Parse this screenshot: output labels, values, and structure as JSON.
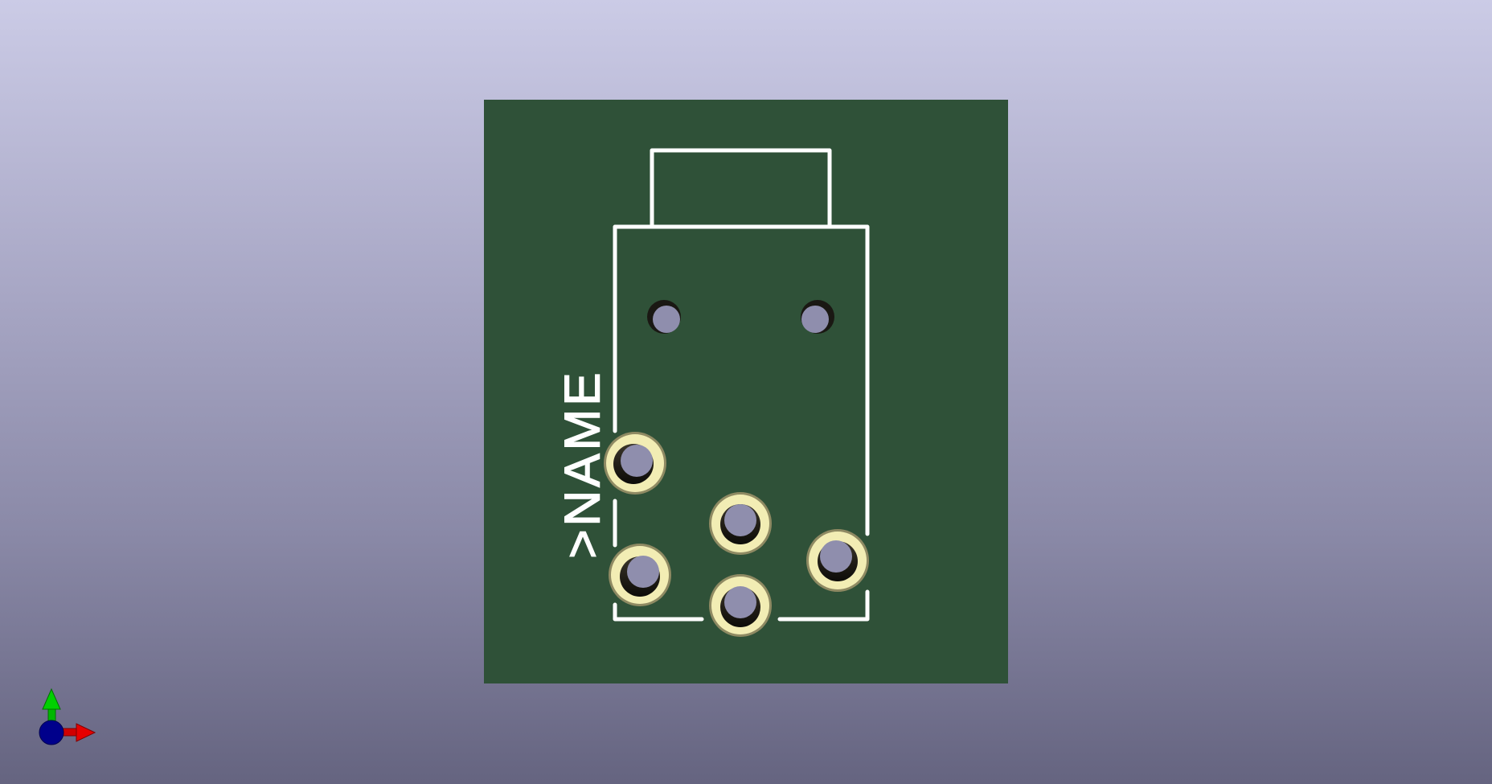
{
  "viewer": {
    "background_top": "#cbcbe6",
    "background_bottom": "#656480"
  },
  "board": {
    "color": "#2f5138",
    "silkscreen_color": "#ffffff",
    "reference_label": ">NAME"
  },
  "pads": {
    "through_hole_count": 5,
    "mounting_hole_count": 2,
    "pad_ring_color": "#f2edb4",
    "pad_edge_color": "#8f8a63",
    "hole_color": "#8f8ead"
  },
  "axis_indicator": {
    "x_color": "#e60000",
    "y_color": "#00c400",
    "z_color": "#00008b"
  }
}
